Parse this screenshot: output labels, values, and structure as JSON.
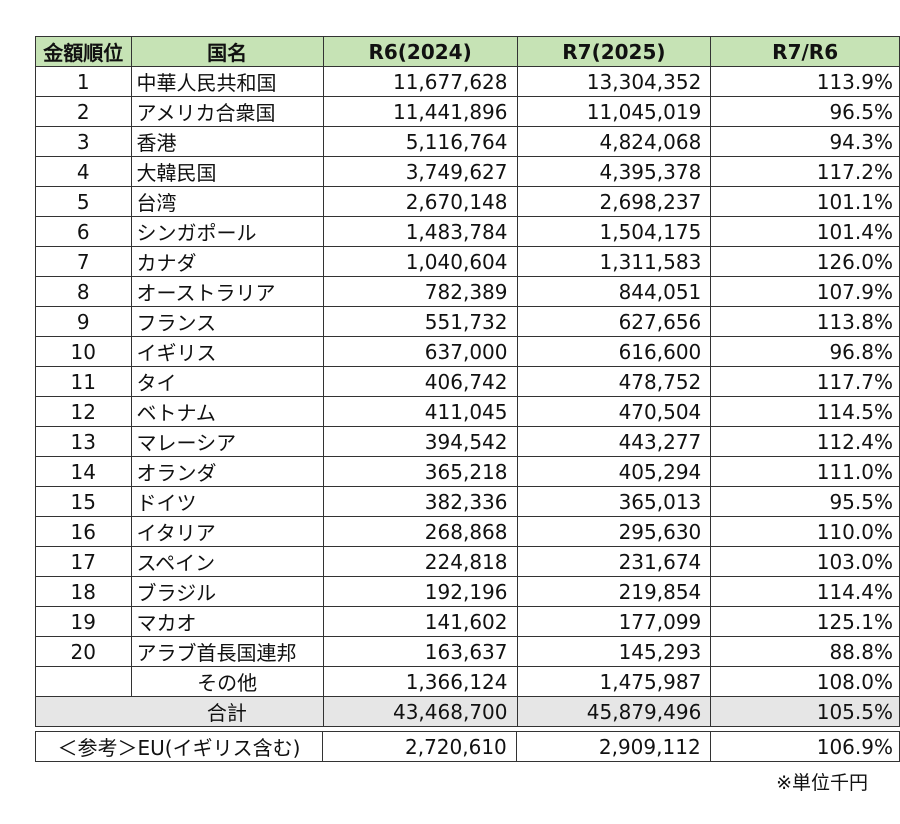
{
  "headers": [
    "金額順位",
    "国名",
    "R6(2024)",
    "R7(2025)",
    "R7/R6"
  ],
  "rows": [
    {
      "rank": "1",
      "country": "中華人民共和国",
      "r6": "11,677,628",
      "r7": "13,304,352",
      "ratio": "113.9%"
    },
    {
      "rank": "2",
      "country": "アメリカ合衆国",
      "r6": "11,441,896",
      "r7": "11,045,019",
      "ratio": "96.5%"
    },
    {
      "rank": "3",
      "country": "香港",
      "r6": "5,116,764",
      "r7": "4,824,068",
      "ratio": "94.3%"
    },
    {
      "rank": "4",
      "country": "大韓民国",
      "r6": "3,749,627",
      "r7": "4,395,378",
      "ratio": "117.2%"
    },
    {
      "rank": "5",
      "country": "台湾",
      "r6": "2,670,148",
      "r7": "2,698,237",
      "ratio": "101.1%"
    },
    {
      "rank": "6",
      "country": "シンガポール",
      "r6": "1,483,784",
      "r7": "1,504,175",
      "ratio": "101.4%"
    },
    {
      "rank": "7",
      "country": "カナダ",
      "r6": "1,040,604",
      "r7": "1,311,583",
      "ratio": "126.0%"
    },
    {
      "rank": "8",
      "country": "オーストラリア",
      "r6": "782,389",
      "r7": "844,051",
      "ratio": "107.9%"
    },
    {
      "rank": "9",
      "country": "フランス",
      "r6": "551,732",
      "r7": "627,656",
      "ratio": "113.8%"
    },
    {
      "rank": "10",
      "country": "イギリス",
      "r6": "637,000",
      "r7": "616,600",
      "ratio": "96.8%"
    },
    {
      "rank": "11",
      "country": "タイ",
      "r6": "406,742",
      "r7": "478,752",
      "ratio": "117.7%"
    },
    {
      "rank": "12",
      "country": "ベトナム",
      "r6": "411,045",
      "r7": "470,504",
      "ratio": "114.5%"
    },
    {
      "rank": "13",
      "country": "マレーシア",
      "r6": "394,542",
      "r7": "443,277",
      "ratio": "112.4%"
    },
    {
      "rank": "14",
      "country": "オランダ",
      "r6": "365,218",
      "r7": "405,294",
      "ratio": "111.0%"
    },
    {
      "rank": "15",
      "country": "ドイツ",
      "r6": "382,336",
      "r7": "365,013",
      "ratio": "95.5%"
    },
    {
      "rank": "16",
      "country": "イタリア",
      "r6": "268,868",
      "r7": "295,630",
      "ratio": "110.0%"
    },
    {
      "rank": "17",
      "country": "スペイン",
      "r6": "224,818",
      "r7": "231,674",
      "ratio": "103.0%"
    },
    {
      "rank": "18",
      "country": "ブラジル",
      "r6": "192,196",
      "r7": "219,854",
      "ratio": "114.4%"
    },
    {
      "rank": "19",
      "country": "マカオ",
      "r6": "141,602",
      "r7": "177,099",
      "ratio": "125.1%"
    },
    {
      "rank": "20",
      "country": "アラブ首長国連邦",
      "r6": "163,637",
      "r7": "145,293",
      "ratio": "88.8%"
    }
  ],
  "other": {
    "label": "その他",
    "r6": "1,366,124",
    "r7": "1,475,987",
    "ratio": "108.0%"
  },
  "total": {
    "label": "合計",
    "r6": "43,468,700",
    "r7": "45,879,496",
    "ratio": "105.5%"
  },
  "reference": {
    "label": "＜参考＞EU(イギリス含む)",
    "r6": "2,720,610",
    "r7": "2,909,112",
    "ratio": "106.9%"
  },
  "unit_note": "※単位千円",
  "colors": {
    "header_bg": "#c6e3b5",
    "total_bg": "#e6e6e6",
    "border": "#333333"
  }
}
